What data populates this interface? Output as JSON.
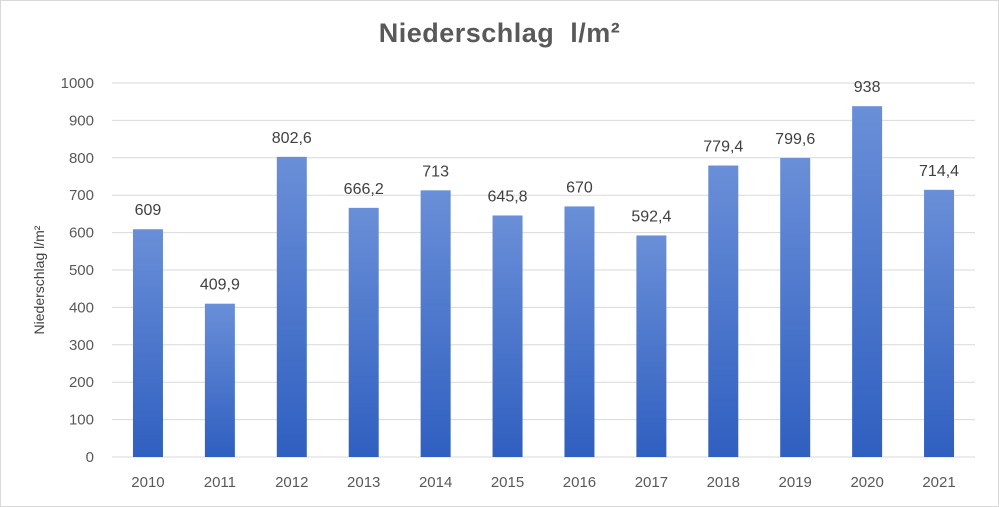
{
  "chart_data": {
    "type": "bar",
    "title": "Niederschlag  l/m²",
    "ylabel": "Niederschlag l/m²",
    "xlabel": "",
    "categories": [
      "2010",
      "2011",
      "2012",
      "2013",
      "2014",
      "2015",
      "2016",
      "2017",
      "2018",
      "2019",
      "2020",
      "2021"
    ],
    "values": [
      609,
      409.9,
      802.6,
      666.2,
      713,
      645.8,
      670,
      592.4,
      779.4,
      799.6,
      938,
      714.4
    ],
    "data_labels": [
      "609",
      "409,9",
      "802,6",
      "666,2",
      "713",
      "645,8",
      "670",
      "592,4",
      "779,4",
      "799,6",
      "938",
      "714,4"
    ],
    "ylim": [
      0,
      1000
    ],
    "yticks": [
      0,
      100,
      200,
      300,
      400,
      500,
      600,
      700,
      800,
      900,
      1000
    ],
    "grid": true,
    "legend": "none",
    "colors": {
      "bar_top": "#6a8fd8",
      "bar_bottom": "#2f5fc0",
      "grid": "#d9d9d9",
      "text": "#595959"
    }
  }
}
